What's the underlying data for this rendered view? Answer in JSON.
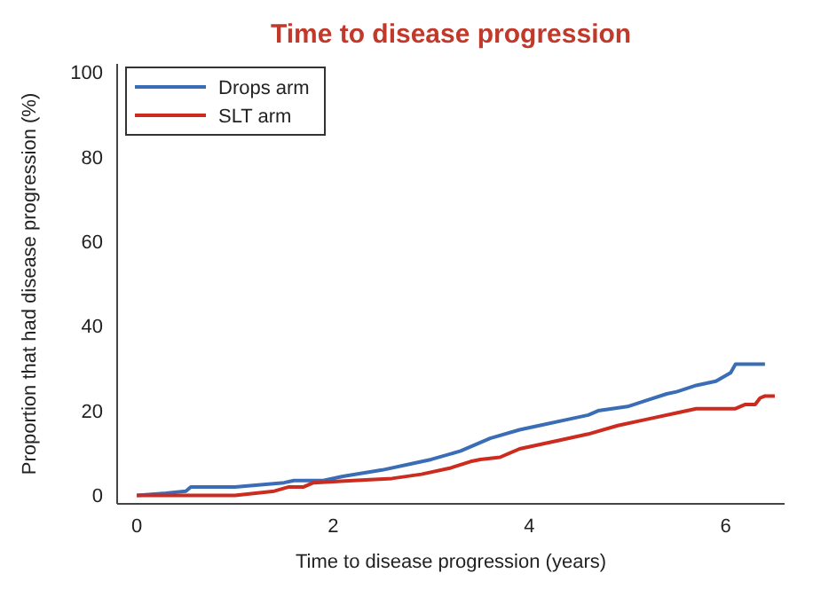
{
  "chart_data": {
    "type": "line",
    "title": "Time to disease progression",
    "xlabel": "Time to disease progression (years)",
    "ylabel": "Proportion that had disease progression (%)",
    "xlim": [
      -0.2,
      6.6
    ],
    "ylim": [
      -2,
      102
    ],
    "xticks": [
      0,
      2,
      4,
      6
    ],
    "yticks": [
      0,
      20,
      40,
      60,
      80,
      100
    ],
    "legend": "top left",
    "grid": false,
    "series": [
      {
        "name": "Drops arm",
        "color": "#3a6db5",
        "x": [
          0,
          0.3,
          0.5,
          0.55,
          1.0,
          1.5,
          1.6,
          1.9,
          2.1,
          2.5,
          2.8,
          3.0,
          3.3,
          3.6,
          3.9,
          4.1,
          4.4,
          4.6,
          4.7,
          5.0,
          5.2,
          5.4,
          5.5,
          5.7,
          5.9,
          6.05,
          6.1,
          6.4
        ],
        "values": [
          0,
          0.5,
          1,
          2,
          2,
          3,
          3.5,
          3.5,
          4.5,
          6,
          7.5,
          8.5,
          10.5,
          13.5,
          15.5,
          16.5,
          18,
          19,
          20,
          21,
          22.5,
          24,
          24.5,
          26,
          27,
          29,
          31,
          31
        ]
      },
      {
        "name": "SLT arm",
        "color": "#cc2b1f",
        "x": [
          0,
          1.0,
          1.4,
          1.55,
          1.7,
          1.8,
          2.2,
          2.6,
          2.9,
          3.2,
          3.4,
          3.5,
          3.7,
          3.9,
          4.3,
          4.6,
          4.9,
          5.2,
          5.5,
          5.7,
          6.1,
          6.2,
          6.3,
          6.35,
          6.4,
          6.5
        ],
        "values": [
          0,
          0,
          1,
          2,
          2,
          3,
          3.5,
          4,
          5,
          6.5,
          8,
          8.5,
          9,
          11,
          13,
          14.5,
          16.5,
          18,
          19.5,
          20.5,
          20.5,
          21.5,
          21.5,
          23,
          23.5,
          23.5
        ]
      }
    ]
  }
}
